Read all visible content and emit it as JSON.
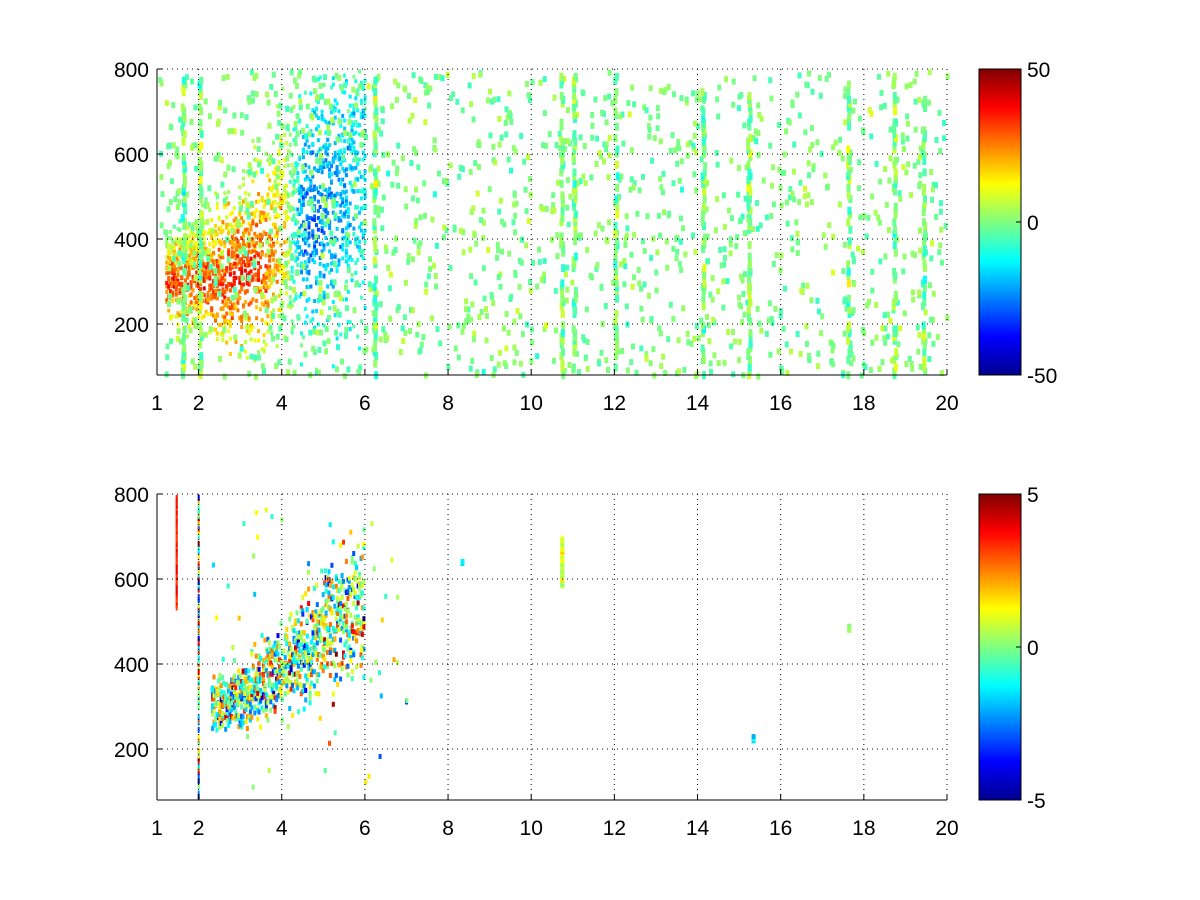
{
  "chart_data": [
    {
      "type": "heatmap",
      "title": "",
      "xlabel": "",
      "ylabel": "",
      "xlim": [
        1,
        20
      ],
      "ylim": [
        80,
        800
      ],
      "xticks": [
        "1",
        "2",
        "4",
        "6",
        "8",
        "10",
        "12",
        "14",
        "16",
        "18",
        "20"
      ],
      "yticks": [
        "200",
        "400",
        "600",
        "800"
      ],
      "grid": true,
      "colormap": "jet",
      "colorbar": {
        "range": [
          -50,
          50
        ],
        "ticks": [
          "50",
          "0",
          "-50"
        ]
      },
      "structure": {
        "mode": "dense",
        "scatter_x_range": [
          1,
          20
        ],
        "vertical_streaks_x": [
          1.6,
          2.0,
          6.2,
          10.7,
          11.0,
          12.0,
          14.1,
          15.2,
          17.6,
          18.7,
          19.4
        ],
        "ridge": [
          {
            "x": 2.5,
            "y": 300,
            "value": 32
          },
          {
            "x": 3.0,
            "y": 320,
            "value": 35
          },
          {
            "x": 3.5,
            "y": 350,
            "value": 30
          },
          {
            "x": 4.0,
            "y": 390,
            "value": 18
          },
          {
            "x": 4.5,
            "y": 430,
            "value": -28
          },
          {
            "x": 5.0,
            "y": 470,
            "value": -25
          },
          {
            "x": 5.5,
            "y": 510,
            "value": -20
          },
          {
            "x": 5.9,
            "y": 540,
            "value": -15
          }
        ]
      }
    },
    {
      "type": "heatmap",
      "title": "",
      "xlabel": "",
      "ylabel": "",
      "xlim": [
        1,
        20
      ],
      "ylim": [
        80,
        800
      ],
      "xticks": [
        "1",
        "2",
        "4",
        "6",
        "8",
        "10",
        "12",
        "14",
        "16",
        "18",
        "20"
      ],
      "yticks": [
        "200",
        "400",
        "600",
        "800"
      ],
      "grid": true,
      "colormap": "jet",
      "colorbar": {
        "range": [
          -5,
          5
        ],
        "ticks": [
          "5",
          "0",
          "-5"
        ]
      },
      "structure": {
        "mode": "sparse",
        "ridge": [
          {
            "x": 2.5,
            "y": 300,
            "value": 1
          },
          {
            "x": 3.0,
            "y": 320,
            "value": 2
          },
          {
            "x": 3.5,
            "y": 350,
            "value": 0
          },
          {
            "x": 4.0,
            "y": 390,
            "value": -1
          },
          {
            "x": 4.5,
            "y": 430,
            "value": 2
          },
          {
            "x": 5.0,
            "y": 470,
            "value": -2
          },
          {
            "x": 5.5,
            "y": 510,
            "value": 3
          },
          {
            "x": 5.9,
            "y": 540,
            "value": 1
          }
        ],
        "isolated_features": [
          {
            "x": 10.7,
            "y0": 590,
            "y1": 700,
            "value": 1
          },
          {
            "x": 15.3,
            "y0": 225,
            "y1": 235,
            "value": -2
          },
          {
            "x": 17.6,
            "y0": 485,
            "y1": 495,
            "value": 1
          },
          {
            "x": 8.3,
            "y0": 642,
            "y1": 650,
            "value": -1
          }
        ]
      }
    }
  ]
}
